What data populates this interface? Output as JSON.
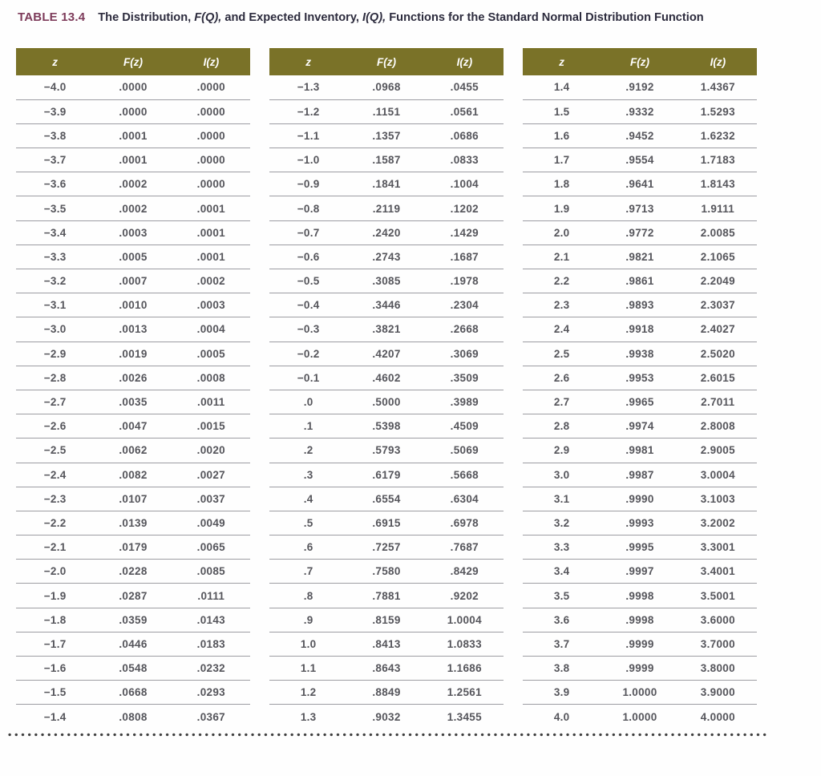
{
  "header": {
    "label": "TABLE 13.4",
    "caption_parts": {
      "p1": "The Distribution, ",
      "fq": "F(Q),",
      "p2": " and Expected Inventory, ",
      "iq": "I(Q),",
      "p3": " Functions for the Standard Normal Distribution Function"
    }
  },
  "columns": [
    "z",
    "F(z)",
    "I(z)"
  ],
  "tables": [
    {
      "rows": [
        [
          "−4.0",
          ".0000",
          ".0000"
        ],
        [
          "−3.9",
          ".0000",
          ".0000"
        ],
        [
          "−3.8",
          ".0001",
          ".0000"
        ],
        [
          "−3.7",
          ".0001",
          ".0000"
        ],
        [
          "−3.6",
          ".0002",
          ".0000"
        ],
        [
          "−3.5",
          ".0002",
          ".0001"
        ],
        [
          "−3.4",
          ".0003",
          ".0001"
        ],
        [
          "−3.3",
          ".0005",
          ".0001"
        ],
        [
          "−3.2",
          ".0007",
          ".0002"
        ],
        [
          "−3.1",
          ".0010",
          ".0003"
        ],
        [
          "−3.0",
          ".0013",
          ".0004"
        ],
        [
          "−2.9",
          ".0019",
          ".0005"
        ],
        [
          "−2.8",
          ".0026",
          ".0008"
        ],
        [
          "−2.7",
          ".0035",
          ".0011"
        ],
        [
          "−2.6",
          ".0047",
          ".0015"
        ],
        [
          "−2.5",
          ".0062",
          ".0020"
        ],
        [
          "−2.4",
          ".0082",
          ".0027"
        ],
        [
          "−2.3",
          ".0107",
          ".0037"
        ],
        [
          "−2.2",
          ".0139",
          ".0049"
        ],
        [
          "−2.1",
          ".0179",
          ".0065"
        ],
        [
          "−2.0",
          ".0228",
          ".0085"
        ],
        [
          "−1.9",
          ".0287",
          ".0111"
        ],
        [
          "−1.8",
          ".0359",
          ".0143"
        ],
        [
          "−1.7",
          ".0446",
          ".0183"
        ],
        [
          "−1.6",
          ".0548",
          ".0232"
        ],
        [
          "−1.5",
          ".0668",
          ".0293"
        ],
        [
          "−1.4",
          ".0808",
          ".0367"
        ]
      ]
    },
    {
      "rows": [
        [
          "−1.3",
          ".0968",
          ".0455"
        ],
        [
          "−1.2",
          ".1151",
          ".0561"
        ],
        [
          "−1.1",
          ".1357",
          ".0686"
        ],
        [
          "−1.0",
          ".1587",
          ".0833"
        ],
        [
          "−0.9",
          ".1841",
          ".1004"
        ],
        [
          "−0.8",
          ".2119",
          ".1202"
        ],
        [
          "−0.7",
          ".2420",
          ".1429"
        ],
        [
          "−0.6",
          ".2743",
          ".1687"
        ],
        [
          "−0.5",
          ".3085",
          ".1978"
        ],
        [
          "−0.4",
          ".3446",
          ".2304"
        ],
        [
          "−0.3",
          ".3821",
          ".2668"
        ],
        [
          "−0.2",
          ".4207",
          ".3069"
        ],
        [
          "−0.1",
          ".4602",
          ".3509"
        ],
        [
          ".0",
          ".5000",
          ".3989"
        ],
        [
          ".1",
          ".5398",
          ".4509"
        ],
        [
          ".2",
          ".5793",
          ".5069"
        ],
        [
          ".3",
          ".6179",
          ".5668"
        ],
        [
          ".4",
          ".6554",
          ".6304"
        ],
        [
          ".5",
          ".6915",
          ".6978"
        ],
        [
          ".6",
          ".7257",
          ".7687"
        ],
        [
          ".7",
          ".7580",
          ".8429"
        ],
        [
          ".8",
          ".7881",
          ".9202"
        ],
        [
          ".9",
          ".8159",
          "1.0004"
        ],
        [
          "1.0",
          ".8413",
          "1.0833"
        ],
        [
          "1.1",
          ".8643",
          "1.1686"
        ],
        [
          "1.2",
          ".8849",
          "1.2561"
        ],
        [
          "1.3",
          ".9032",
          "1.3455"
        ]
      ]
    },
    {
      "rows": [
        [
          "1.4",
          ".9192",
          "1.4367"
        ],
        [
          "1.5",
          ".9332",
          "1.5293"
        ],
        [
          "1.6",
          ".9452",
          "1.6232"
        ],
        [
          "1.7",
          ".9554",
          "1.7183"
        ],
        [
          "1.8",
          ".9641",
          "1.8143"
        ],
        [
          "1.9",
          ".9713",
          "1.9111"
        ],
        [
          "2.0",
          ".9772",
          "2.0085"
        ],
        [
          "2.1",
          ".9821",
          "2.1065"
        ],
        [
          "2.2",
          ".9861",
          "2.2049"
        ],
        [
          "2.3",
          ".9893",
          "2.3037"
        ],
        [
          "2.4",
          ".9918",
          "2.4027"
        ],
        [
          "2.5",
          ".9938",
          "2.5020"
        ],
        [
          "2.6",
          ".9953",
          "2.6015"
        ],
        [
          "2.7",
          ".9965",
          "2.7011"
        ],
        [
          "2.8",
          ".9974",
          "2.8008"
        ],
        [
          "2.9",
          ".9981",
          "2.9005"
        ],
        [
          "3.0",
          ".9987",
          "3.0004"
        ],
        [
          "3.1",
          ".9990",
          "3.1003"
        ],
        [
          "3.2",
          ".9993",
          "3.2002"
        ],
        [
          "3.3",
          ".9995",
          "3.3001"
        ],
        [
          "3.4",
          ".9997",
          "3.4001"
        ],
        [
          "3.5",
          ".9998",
          "3.5001"
        ],
        [
          "3.6",
          ".9998",
          "3.6000"
        ],
        [
          "3.7",
          ".9999",
          "3.7000"
        ],
        [
          "3.8",
          ".9999",
          "3.8000"
        ],
        [
          "3.9",
          "1.0000",
          "3.9000"
        ],
        [
          "4.0",
          "1.0000",
          "4.0000"
        ]
      ]
    }
  ],
  "colors": {
    "header_bg": "#7a7228",
    "title_label": "#7d3b5a",
    "caption_color": "#2c2b3d",
    "data_color": "#55555b",
    "rule_color": "#9c9ca2",
    "dot_color": "#3e3e3e"
  }
}
